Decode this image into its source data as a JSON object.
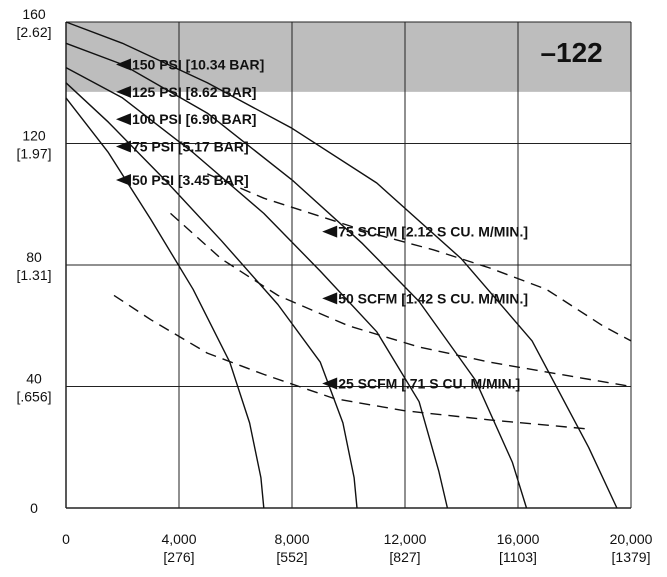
{
  "chart_data": {
    "type": "line",
    "title": "",
    "xlabel": "",
    "ylabel": "",
    "xlim": [
      0,
      20000
    ],
    "ylim": [
      0,
      160
    ],
    "grid": true,
    "model_badge": "–122",
    "shaded_band": {
      "y_from": 137,
      "y_to": 160,
      "color": "#bdbdbd"
    },
    "x_ticks": [
      {
        "value": 0,
        "label": "0",
        "sub": ""
      },
      {
        "value": 4000,
        "label": "4,000",
        "sub": "[276]"
      },
      {
        "value": 8000,
        "label": "8,000",
        "sub": "[552]"
      },
      {
        "value": 12000,
        "label": "12,000",
        "sub": "[827]"
      },
      {
        "value": 16000,
        "label": "16,000",
        "sub": "[1103]"
      },
      {
        "value": 20000,
        "label": "20,000",
        "sub": "[1379]"
      }
    ],
    "y_ticks": [
      {
        "value": 0,
        "label": "0",
        "sub": ""
      },
      {
        "value": 40,
        "label": "40",
        "sub": "[.656]"
      },
      {
        "value": 80,
        "label": "80",
        "sub": "[1.31]"
      },
      {
        "value": 120,
        "label": "120",
        "sub": "[1.97]"
      },
      {
        "value": 160,
        "label": "160",
        "sub": "[2.62]"
      }
    ],
    "series": [
      {
        "name": "150 PSI [10.34 BAR]",
        "style": "solid",
        "x": [
          0,
          2000,
          5000,
          8000,
          11000,
          14000,
          16500,
          18500,
          19500
        ],
        "y": [
          160,
          153,
          140,
          125,
          107,
          82,
          55,
          20,
          0
        ]
      },
      {
        "name": "125 PSI [8.62 BAR]",
        "style": "solid",
        "x": [
          0,
          2000,
          5000,
          8000,
          10500,
          12500,
          14500,
          15800,
          16300
        ],
        "y": [
          153,
          146,
          130,
          108,
          87,
          68,
          42,
          15,
          0
        ]
      },
      {
        "name": "100 PSI [6.90 BAR]",
        "style": "solid",
        "x": [
          0,
          2000,
          4500,
          7000,
          9000,
          11000,
          12500,
          13200,
          13500
        ],
        "y": [
          145,
          135,
          117,
          97,
          78,
          58,
          35,
          12,
          0
        ]
      },
      {
        "name": "75 PSI [5.17 BAR]",
        "style": "solid",
        "x": [
          0,
          1500,
          3500,
          5500,
          7500,
          9000,
          9800,
          10200,
          10300
        ],
        "y": [
          140,
          127,
          108,
          88,
          67,
          48,
          28,
          10,
          0
        ]
      },
      {
        "name": "50 PSI [3.45 BAR]",
        "style": "solid",
        "x": [
          0,
          1500,
          3000,
          4500,
          5800,
          6500,
          6900,
          7000
        ],
        "y": [
          135,
          117,
          95,
          72,
          48,
          28,
          10,
          0
        ]
      },
      {
        "name": "75 SCFM [2.12 S CU. M/MIN.]",
        "style": "dashed",
        "x": [
          5000,
          7000,
          9000,
          11000,
          13000,
          15000,
          17000,
          19000,
          20000
        ],
        "y": [
          110,
          102,
          96,
          90,
          85,
          79,
          72,
          60,
          55
        ]
      },
      {
        "name": "50 SCFM [1.42 S CU. M/MIN.]",
        "style": "dashed",
        "x": [
          3700,
          5500,
          7500,
          10000,
          12500,
          15000,
          17500,
          20000
        ],
        "y": [
          97,
          82,
          70,
          60,
          53,
          48,
          44,
          40
        ]
      },
      {
        "name": "25 SCFM [.71 S CU. M/MIN.]",
        "style": "dashed",
        "x": [
          1700,
          3000,
          5000,
          7000,
          9500,
          12000,
          15000,
          18500
        ],
        "y": [
          70,
          62,
          51,
          44,
          36,
          32,
          29,
          26
        ]
      }
    ],
    "annotations": [
      {
        "text": "150 PSI [10.34 BAR]",
        "x": 2300,
        "y": 146
      },
      {
        "text": "125 PSI [8.62 BAR]",
        "x": 2300,
        "y": 137
      },
      {
        "text": "100 PSI [6.90 BAR]",
        "x": 2300,
        "y": 128
      },
      {
        "text": "75 PSI [5.17 BAR]",
        "x": 2300,
        "y": 119
      },
      {
        "text": "50 PSI [3.45 BAR]",
        "x": 2300,
        "y": 108
      },
      {
        "text": "75 SCFM [2.12 S CU. M/MIN.]",
        "x": 9600,
        "y": 91
      },
      {
        "text": "50 SCFM [1.42 S CU. M/MIN.]",
        "x": 9600,
        "y": 69
      },
      {
        "text": "25 SCFM [.71 S CU. M/MIN.]",
        "x": 9600,
        "y": 41
      }
    ]
  }
}
